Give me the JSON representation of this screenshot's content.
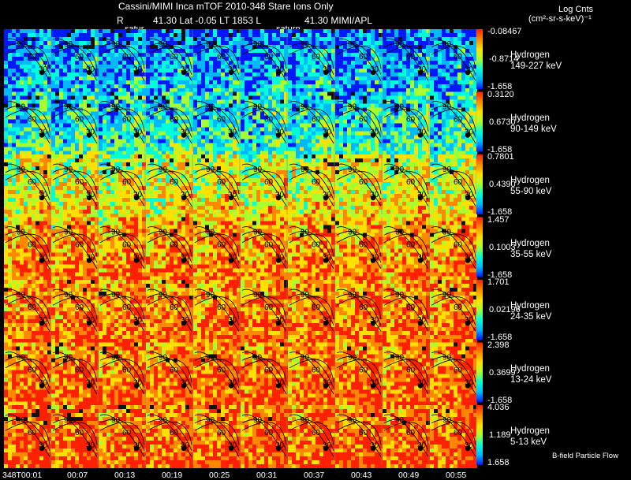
{
  "header": {
    "title": "Cassini/MIMI Inca mTOF  2010-348   Stare   Ions Only",
    "line2_r": "R",
    "line2_a": "41.30 Lat -0.05 LT 1853 L",
    "line2_b": "41.30  MIMI/APL",
    "saturn_label_1": "satur",
    "saturn_label_2": "saturn"
  },
  "units": {
    "line1": "Log Cnts",
    "line2": "(cm²-sr-s-keV)⁻¹"
  },
  "footer_note": "B-field Particle Flow",
  "chart_data": {
    "type": "heatmap",
    "description_free": true,
    "time_labels": [
      "348T00:01",
      "00:07",
      "00:13",
      "00:19",
      "00:25",
      "00:31",
      "00:37",
      "00:43",
      "00:49",
      "00:55"
    ],
    "contour_labels": [
      "90",
      "60",
      "30"
    ],
    "colorscale": [
      "#0018ff",
      "#00b8ff",
      "#00ffd8",
      "#a8ff30",
      "#ffe000",
      "#ff8800",
      "#ff2000"
    ],
    "rows": [
      {
        "species": "Hydrogen",
        "energy": "149-227 keV",
        "cmax": "-0.08467",
        "cmid": "-0.8714",
        "cmin": "-1.658",
        "level": 0.18
      },
      {
        "species": "Hydrogen",
        "energy": "90-149 keV",
        "cmax": "0.3120",
        "cmid": "0.6730",
        "cmin": "-1.658",
        "level": 0.32
      },
      {
        "species": "Hydrogen",
        "energy": "55-90 keV",
        "cmax": "0.7801",
        "cmid": "0.4390",
        "cmin": "-1.658",
        "level": 0.58
      },
      {
        "species": "Hydrogen",
        "energy": "35-55 keV",
        "cmax": "1.457",
        "cmid": "0.1003",
        "cmin": "-1.658",
        "level": 0.74
      },
      {
        "species": "Hydrogen",
        "energy": "24-35 keV",
        "cmax": "1.701",
        "cmid": "0.02196",
        "cmin": "-1.658",
        "level": 0.78
      },
      {
        "species": "Hydrogen",
        "energy": "13-24 keV",
        "cmax": "2.398",
        "cmid": "0.3699",
        "cmin": "-1.658",
        "level": 0.8
      },
      {
        "species": "Hydrogen",
        "energy": "5-13 keV",
        "cmax": "4.036",
        "cmid": "1.189",
        "cmin": "1.658",
        "level": 0.82
      }
    ]
  }
}
